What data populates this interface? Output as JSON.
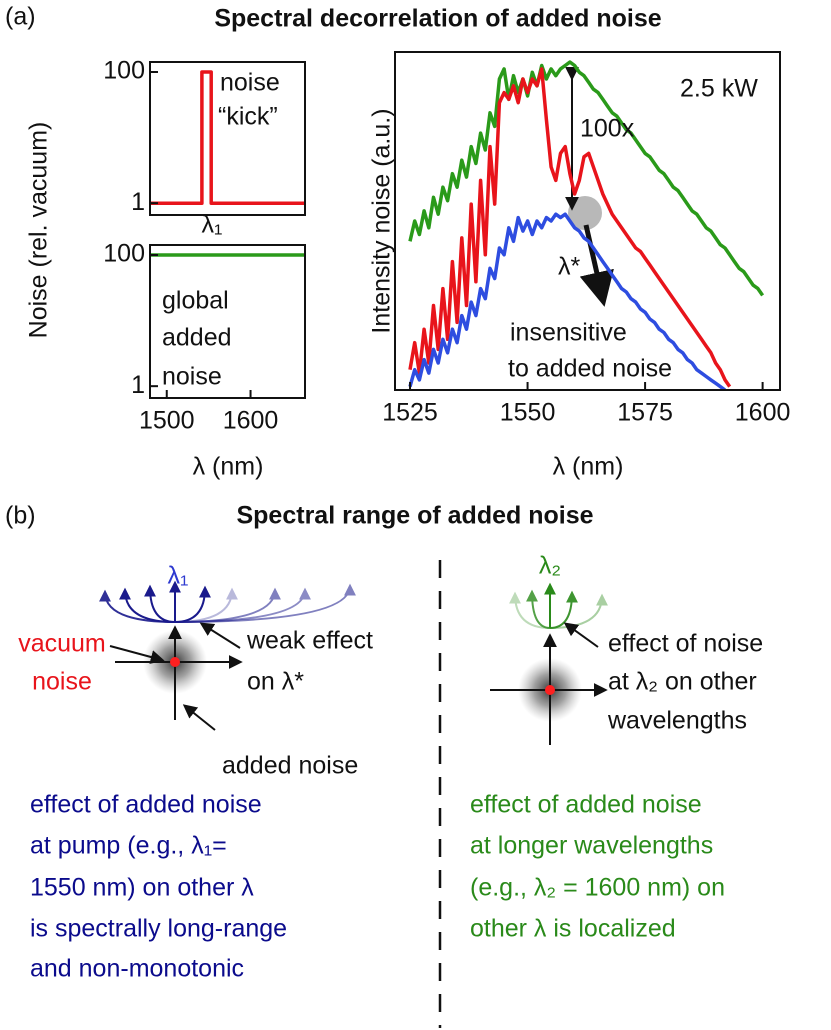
{
  "chart_data": [
    {
      "type": "line",
      "ylabel": "Noise (rel. vacuum)",
      "yscale": "log",
      "xlim": [
        1480,
        1665
      ],
      "ylim": [
        0.66,
        142
      ],
      "yticks": [
        1,
        100
      ],
      "x": [
        1480,
        1542,
        1542,
        1553,
        1553,
        1665
      ],
      "series": [
        {
          "color": "#e8141b",
          "values": [
            1,
            1,
            100,
            100,
            1,
            1
          ]
        }
      ],
      "annotations": [
        "noise",
        "“kick”",
        "λ₁"
      ]
    },
    {
      "type": "line",
      "xlabel": "λ (nm)",
      "yscale": "log",
      "xlim": [
        1480,
        1665
      ],
      "ylim": [
        0.66,
        142
      ],
      "yticks": [
        1,
        100
      ],
      "xticks": [
        1500,
        1600
      ],
      "x": [
        1480,
        1665
      ],
      "series": [
        {
          "color": "#2a9a1a",
          "values": [
            100,
            100
          ]
        }
      ],
      "annotations": [
        "global",
        "added",
        "noise"
      ]
    },
    {
      "type": "line",
      "ylabel": "Intensity noise (a.u.)",
      "xlabel": "λ (nm)",
      "xlim": [
        1521.8,
        1603.7
      ],
      "ylim": [
        0,
        100
      ],
      "xticks": [
        1525,
        1550,
        1575,
        1600
      ],
      "x": [
        1525,
        1526,
        1527,
        1528,
        1529,
        1530,
        1531,
        1532,
        1533,
        1534,
        1535,
        1536,
        1537,
        1538,
        1539,
        1540,
        1541,
        1542,
        1543,
        1544,
        1545,
        1546,
        1547,
        1548,
        1549,
        1550,
        1551,
        1552,
        1553,
        1554,
        1555,
        1556,
        1557,
        1558,
        1559,
        1560,
        1561,
        1562,
        1563,
        1564,
        1565,
        1566,
        1567,
        1568,
        1569,
        1570,
        1571,
        1572,
        1573,
        1574,
        1575,
        1576,
        1577,
        1578,
        1579,
        1580,
        1581,
        1582,
        1583,
        1584,
        1585,
        1586,
        1587,
        1588,
        1589,
        1590,
        1591,
        1592,
        1593,
        1594,
        1595,
        1596,
        1597,
        1598,
        1599,
        1600
      ],
      "series": [
        {
          "color": "#2a9a1a",
          "values": [
            44,
            50,
            46,
            53,
            48,
            57,
            52,
            60,
            56,
            64,
            60,
            68,
            63,
            72,
            67,
            76,
            71,
            82,
            78,
            92,
            95,
            86,
            93,
            88,
            92,
            87,
            94,
            90,
            96,
            92,
            95,
            93,
            95,
            96,
            97,
            96,
            94,
            93,
            91,
            89,
            88,
            86,
            84,
            82,
            81,
            79,
            77,
            76,
            74,
            72,
            70,
            69,
            67,
            65,
            64,
            62,
            60,
            59,
            57,
            55,
            53,
            52,
            50,
            48,
            47,
            45,
            43,
            42,
            40,
            38,
            36,
            35,
            33,
            31,
            30,
            28
          ]
        },
        {
          "color": "#e8141b",
          "values": [
            6,
            14,
            5,
            18,
            8,
            25,
            12,
            30,
            15,
            38,
            20,
            45,
            25,
            55,
            32,
            62,
            40,
            72,
            55,
            85,
            88,
            86,
            90,
            85,
            92,
            88,
            92,
            90,
            95,
            80,
            66,
            62,
            70,
            72,
            64,
            58,
            62,
            69,
            70,
            66,
            62,
            58,
            55,
            52,
            50,
            48,
            46,
            44,
            42,
            41,
            39,
            37,
            35,
            33,
            31,
            29,
            27,
            25,
            23,
            21,
            19,
            17,
            15,
            13,
            11,
            8,
            6,
            3,
            1,
            null,
            null,
            null,
            null,
            null,
            null,
            null
          ]
        },
        {
          "color": "#2e4de0",
          "values": [
            1,
            6,
            3,
            9,
            5,
            12,
            8,
            15,
            11,
            18,
            14,
            22,
            18,
            26,
            22,
            30,
            27,
            36,
            33,
            42,
            40,
            48,
            44,
            51,
            47,
            50,
            46,
            50,
            48,
            51,
            50,
            52,
            51,
            52,
            50,
            48,
            47,
            45,
            44,
            42,
            40,
            38,
            36,
            34,
            32,
            30,
            29,
            27,
            26,
            24,
            23,
            21,
            20,
            18,
            17,
            15,
            14,
            12,
            11,
            9,
            8,
            6,
            5,
            4,
            3,
            2,
            1,
            0,
            null,
            null,
            null,
            null,
            null,
            null,
            null,
            null
          ]
        }
      ],
      "annotations": [
        "2.5 kW",
        "100x",
        "λ*",
        "insensitive",
        "to added noise"
      ]
    }
  ],
  "panel_a": {
    "label": "(a)",
    "title": "Spectral decorrelation of added noise"
  },
  "panel_b": {
    "label": "(b)",
    "title": "Spectral range of added noise",
    "left": {
      "lambda": "λ₁",
      "vacuum": [
        "vacuum",
        "noise"
      ],
      "weak": [
        "weak effect",
        "on λ*"
      ],
      "added": "added noise",
      "text": [
        "effect of added noise",
        "at pump (e.g., λ₁=",
        "1550 nm) on other λ",
        "is spectrally long-range",
        "and non-monotonic"
      ]
    },
    "right": {
      "lambda": "λ₂",
      "effect": [
        "effect of noise",
        "at λ₂ on other",
        "wavelengths"
      ],
      "text": [
        "effect of added noise",
        "at longer wavelengths",
        "(e.g., λ₂ = 1600 nm) on",
        "other λ is localized"
      ]
    }
  }
}
